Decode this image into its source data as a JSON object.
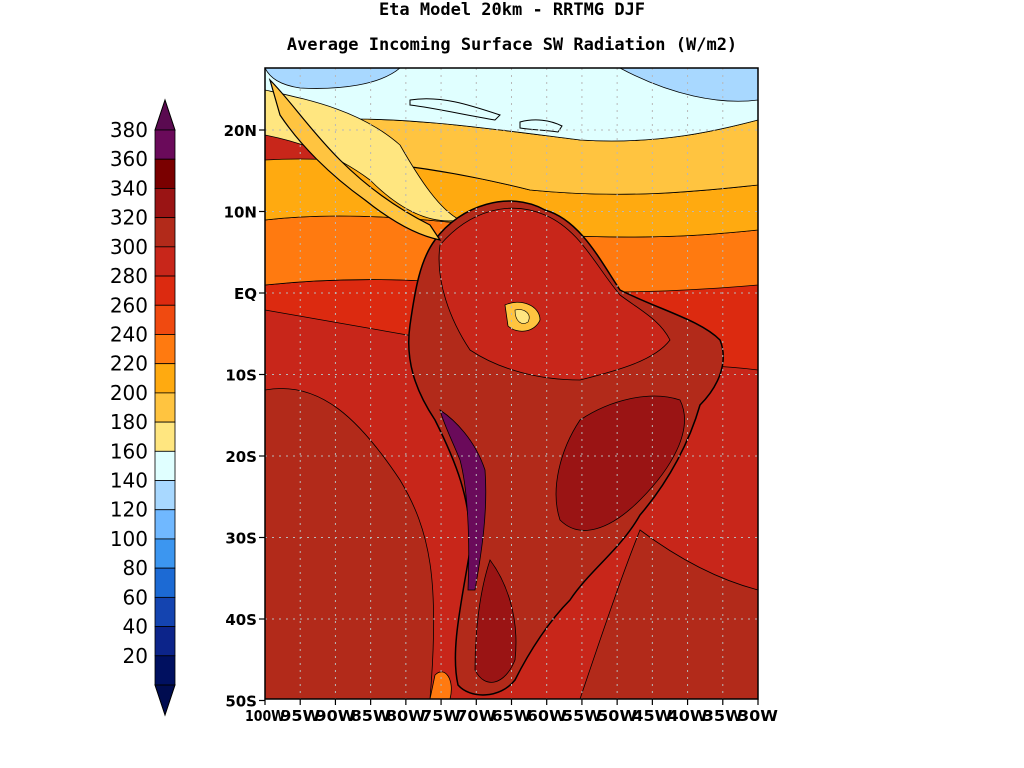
{
  "title": "Eta Model 20km - RRTMG DJF",
  "subtitle": "Average Incoming Surface SW Radiation (W/m2)",
  "colorbar": {
    "labels": [
      "380",
      "360",
      "340",
      "320",
      "300",
      "280",
      "260",
      "240",
      "220",
      "200",
      "180",
      "160",
      "140",
      "120",
      "100",
      "80",
      "60",
      "40",
      "20"
    ],
    "colors": [
      "#6a0a5a",
      "#7a0000",
      "#9a1414",
      "#b22a1a",
      "#c8261a",
      "#dc2a10",
      "#f04a10",
      "#ff7a10",
      "#ffaa10",
      "#ffc440",
      "#ffe680",
      "#e0ffff",
      "#a8d8ff",
      "#70b8ff",
      "#3c96f0",
      "#1c6ad4",
      "#1444b0",
      "#0c248a",
      "#001060"
    ],
    "cap_top": "#5a0a50",
    "cap_bottom": "#000c50"
  },
  "map": {
    "lat_labels": [
      "20N",
      "10N",
      "EQ",
      "10S",
      "20S",
      "30S",
      "40S",
      "50S"
    ],
    "lon_labels": [
      "100W",
      "95W",
      "90W",
      "85W",
      "80W",
      "75W",
      "70W",
      "65W",
      "60W",
      "55W",
      "50W",
      "45W",
      "40W",
      "35W",
      "30W"
    ]
  }
}
